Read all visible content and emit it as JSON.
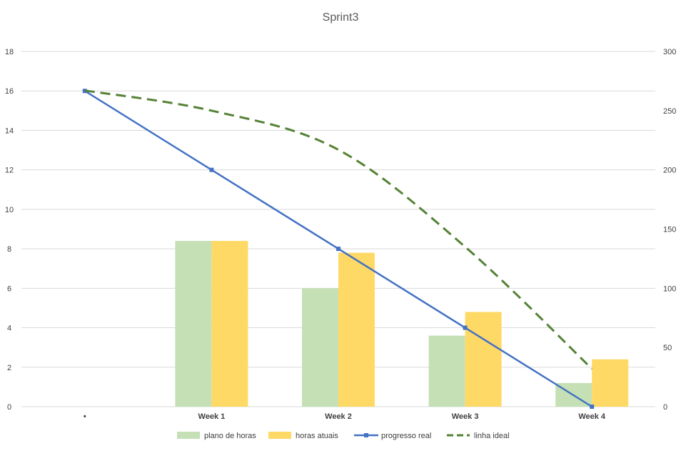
{
  "chart_data": {
    "type": "bar",
    "title": "Sprint3",
    "categories": [
      "•",
      "Week 1",
      "Week 2",
      "Week 3",
      "Week 4"
    ],
    "y_left": {
      "min": 0,
      "max": 18,
      "step": 2,
      "ticks": [
        "0",
        "2",
        "4",
        "6",
        "8",
        "10",
        "12",
        "14",
        "16",
        "18"
      ]
    },
    "y_right": {
      "min": 0,
      "max": 300,
      "step": 50,
      "ticks": [
        "0",
        "50",
        "100",
        "150",
        "200",
        "250",
        "300"
      ]
    },
    "grid": true,
    "legend_position": "bottom",
    "series": [
      {
        "name": "plano de horas",
        "type": "bar",
        "axis": "left",
        "color": "#c5e0b4",
        "values": [
          null,
          8.4,
          6.0,
          3.6,
          1.2
        ]
      },
      {
        "name": "horas atuais",
        "type": "bar",
        "axis": "left",
        "color": "#ffd966",
        "values": [
          null,
          8.4,
          7.8,
          4.8,
          2.4
        ]
      },
      {
        "name": "progresso real",
        "type": "line",
        "axis": "left",
        "color": "#4472c4",
        "marker": "square",
        "values": [
          16,
          12,
          8,
          4,
          0
        ]
      },
      {
        "name": "linha ideal",
        "type": "line",
        "axis": "right",
        "color": "#548235",
        "dash": "dashed",
        "values": [
          267,
          250,
          217,
          135,
          32
        ]
      }
    ]
  }
}
